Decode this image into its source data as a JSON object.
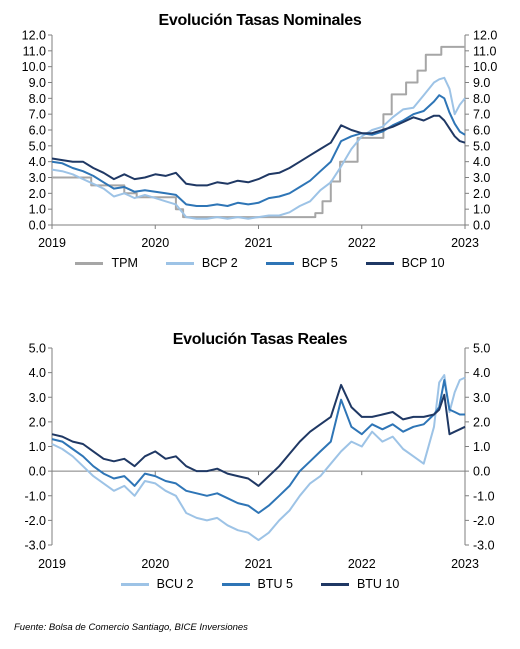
{
  "chart_data": [
    {
      "type": "line",
      "title": "Evolución Tasas Nominales",
      "ylim": [
        0,
        12
      ],
      "y_ticks": [
        "0.0",
        "1.0",
        "2.0",
        "3.0",
        "4.0",
        "5.0",
        "6.0",
        "7.0",
        "8.0",
        "9.0",
        "10.0",
        "11.0",
        "12.0"
      ],
      "x_ticks": [
        "2019",
        "2020",
        "2021",
        "2022",
        "2023"
      ],
      "xlim": [
        2019.0,
        2023.0
      ],
      "grid": false,
      "legend_position": "bottom",
      "series": [
        {
          "name": "TPM",
          "color": "#a6a6a6",
          "step": true,
          "x": [
            2019.0,
            2019.38,
            2019.7,
            2019.82,
            2020.2,
            2020.27,
            2021.55,
            2021.62,
            2021.7,
            2021.79,
            2021.88,
            2021.96,
            2022.05,
            2022.21,
            2022.29,
            2022.43,
            2022.54,
            2022.62,
            2022.7,
            2022.77,
            2023.0
          ],
          "values": [
            3.0,
            2.5,
            2.0,
            1.75,
            1.0,
            0.5,
            0.75,
            1.5,
            2.75,
            4.0,
            4.0,
            5.5,
            5.5,
            7.0,
            8.25,
            9.0,
            9.75,
            10.75,
            10.75,
            11.25,
            11.25
          ]
        },
        {
          "name": "BCP 2",
          "color": "#9dc3e6",
          "x": [
            2019.0,
            2019.1,
            2019.2,
            2019.3,
            2019.4,
            2019.5,
            2019.6,
            2019.7,
            2019.8,
            2019.9,
            2020.0,
            2020.1,
            2020.2,
            2020.3,
            2020.4,
            2020.5,
            2020.6,
            2020.7,
            2020.8,
            2020.9,
            2021.0,
            2021.1,
            2021.2,
            2021.3,
            2021.4,
            2021.5,
            2021.6,
            2021.7,
            2021.8,
            2021.9,
            2022.0,
            2022.1,
            2022.2,
            2022.3,
            2022.4,
            2022.5,
            2022.6,
            2022.7,
            2022.75,
            2022.8,
            2022.85,
            2022.9,
            2022.95,
            2023.0
          ],
          "values": [
            3.5,
            3.4,
            3.2,
            2.9,
            2.6,
            2.3,
            1.8,
            2.0,
            1.7,
            1.9,
            1.7,
            1.5,
            1.3,
            0.5,
            0.4,
            0.4,
            0.5,
            0.4,
            0.5,
            0.4,
            0.5,
            0.6,
            0.6,
            0.8,
            1.2,
            1.5,
            2.2,
            2.7,
            3.7,
            4.8,
            5.6,
            6.0,
            6.2,
            6.8,
            7.3,
            7.4,
            8.2,
            9.0,
            9.2,
            9.3,
            8.6,
            7.0,
            7.6,
            8.0
          ]
        },
        {
          "name": "BCP 5",
          "color": "#2e75b6",
          "x": [
            2019.0,
            2019.1,
            2019.2,
            2019.3,
            2019.4,
            2019.5,
            2019.6,
            2019.7,
            2019.8,
            2019.9,
            2020.0,
            2020.1,
            2020.2,
            2020.3,
            2020.4,
            2020.5,
            2020.6,
            2020.7,
            2020.8,
            2020.9,
            2021.0,
            2021.1,
            2021.2,
            2021.3,
            2021.4,
            2021.5,
            2021.6,
            2021.7,
            2021.8,
            2021.9,
            2022.0,
            2022.1,
            2022.2,
            2022.3,
            2022.4,
            2022.5,
            2022.6,
            2022.7,
            2022.75,
            2022.8,
            2022.85,
            2022.9,
            2022.95,
            2023.0
          ],
          "values": [
            4.0,
            3.9,
            3.6,
            3.4,
            3.1,
            2.7,
            2.3,
            2.4,
            2.1,
            2.2,
            2.1,
            2.0,
            1.9,
            1.3,
            1.2,
            1.2,
            1.3,
            1.2,
            1.4,
            1.3,
            1.4,
            1.7,
            1.8,
            2.0,
            2.4,
            2.8,
            3.4,
            4.0,
            5.3,
            5.6,
            5.8,
            5.7,
            5.9,
            6.3,
            6.6,
            7.0,
            7.2,
            7.8,
            8.2,
            8.0,
            7.1,
            6.4,
            5.9,
            5.7
          ]
        },
        {
          "name": "BCP 10",
          "color": "#1f3864",
          "x": [
            2019.0,
            2019.1,
            2019.2,
            2019.3,
            2019.4,
            2019.5,
            2019.6,
            2019.7,
            2019.8,
            2019.9,
            2020.0,
            2020.1,
            2020.2,
            2020.3,
            2020.4,
            2020.5,
            2020.6,
            2020.7,
            2020.8,
            2020.9,
            2021.0,
            2021.1,
            2021.2,
            2021.3,
            2021.4,
            2021.5,
            2021.6,
            2021.7,
            2021.8,
            2021.9,
            2022.0,
            2022.1,
            2022.2,
            2022.3,
            2022.4,
            2022.5,
            2022.6,
            2022.7,
            2022.75,
            2022.8,
            2022.85,
            2022.9,
            2022.95,
            2023.0
          ],
          "values": [
            4.2,
            4.1,
            4.0,
            4.0,
            3.6,
            3.3,
            2.9,
            3.2,
            2.9,
            3.0,
            3.2,
            3.1,
            3.3,
            2.6,
            2.5,
            2.5,
            2.7,
            2.6,
            2.8,
            2.7,
            2.9,
            3.2,
            3.3,
            3.6,
            4.0,
            4.4,
            4.8,
            5.2,
            6.3,
            6.0,
            5.8,
            5.8,
            6.0,
            6.2,
            6.5,
            6.8,
            6.6,
            6.9,
            6.9,
            6.6,
            6.1,
            5.6,
            5.3,
            5.2
          ]
        }
      ]
    },
    {
      "type": "line",
      "title": "Evolución Tasas Reales",
      "ylim": [
        -3,
        5
      ],
      "y_ticks": [
        "-3.0",
        "-2.0",
        "-1.0",
        "0.0",
        "1.0",
        "2.0",
        "3.0",
        "4.0",
        "5.0"
      ],
      "x_ticks": [
        "2019",
        "2020",
        "2021",
        "2022",
        "2023"
      ],
      "xlim": [
        2019.0,
        2023.0
      ],
      "grid": false,
      "legend_position": "bottom",
      "series": [
        {
          "name": "BCU 2",
          "color": "#9dc3e6",
          "x": [
            2019.0,
            2019.1,
            2019.2,
            2019.3,
            2019.4,
            2019.5,
            2019.6,
            2019.7,
            2019.8,
            2019.9,
            2020.0,
            2020.1,
            2020.2,
            2020.3,
            2020.4,
            2020.5,
            2020.6,
            2020.7,
            2020.8,
            2020.9,
            2021.0,
            2021.1,
            2021.2,
            2021.3,
            2021.4,
            2021.5,
            2021.6,
            2021.7,
            2021.8,
            2021.9,
            2022.0,
            2022.1,
            2022.2,
            2022.3,
            2022.4,
            2022.5,
            2022.6,
            2022.7,
            2022.75,
            2022.8,
            2022.85,
            2022.9,
            2022.95,
            2023.0
          ],
          "values": [
            1.1,
            0.9,
            0.6,
            0.2,
            -0.2,
            -0.5,
            -0.8,
            -0.6,
            -1.0,
            -0.4,
            -0.5,
            -0.8,
            -1.0,
            -1.7,
            -1.9,
            -2.0,
            -1.9,
            -2.2,
            -2.4,
            -2.5,
            -2.8,
            -2.5,
            -2.0,
            -1.6,
            -1.0,
            -0.5,
            -0.2,
            0.3,
            0.8,
            1.2,
            1.0,
            1.6,
            1.2,
            1.4,
            0.9,
            0.6,
            0.3,
            1.8,
            3.6,
            3.9,
            2.4,
            3.2,
            3.7,
            3.8
          ]
        },
        {
          "name": "BTU 5",
          "color": "#2e75b6",
          "x": [
            2019.0,
            2019.1,
            2019.2,
            2019.3,
            2019.4,
            2019.5,
            2019.6,
            2019.7,
            2019.8,
            2019.9,
            2020.0,
            2020.1,
            2020.2,
            2020.3,
            2020.4,
            2020.5,
            2020.6,
            2020.7,
            2020.8,
            2020.9,
            2021.0,
            2021.1,
            2021.2,
            2021.3,
            2021.4,
            2021.5,
            2021.6,
            2021.7,
            2021.8,
            2021.9,
            2022.0,
            2022.1,
            2022.2,
            2022.3,
            2022.4,
            2022.5,
            2022.6,
            2022.7,
            2022.75,
            2022.8,
            2022.85,
            2022.9,
            2022.95,
            2023.0
          ],
          "values": [
            1.3,
            1.2,
            0.9,
            0.6,
            0.2,
            -0.1,
            -0.3,
            -0.2,
            -0.6,
            -0.1,
            -0.2,
            -0.4,
            -0.5,
            -0.8,
            -0.9,
            -1.0,
            -0.9,
            -1.1,
            -1.3,
            -1.4,
            -1.7,
            -1.4,
            -1.0,
            -0.6,
            0.0,
            0.4,
            0.8,
            1.2,
            2.9,
            1.8,
            1.5,
            1.9,
            1.7,
            1.9,
            1.6,
            1.8,
            1.9,
            2.3,
            2.6,
            3.7,
            2.5,
            2.4,
            2.3,
            2.3
          ]
        },
        {
          "name": "BTU 10",
          "color": "#1f3864",
          "x": [
            2019.0,
            2019.1,
            2019.2,
            2019.3,
            2019.4,
            2019.5,
            2019.6,
            2019.7,
            2019.8,
            2019.9,
            2020.0,
            2020.1,
            2020.2,
            2020.3,
            2020.4,
            2020.5,
            2020.6,
            2020.7,
            2020.8,
            2020.9,
            2021.0,
            2021.1,
            2021.2,
            2021.3,
            2021.4,
            2021.5,
            2021.6,
            2021.7,
            2021.8,
            2021.9,
            2022.0,
            2022.1,
            2022.2,
            2022.3,
            2022.4,
            2022.5,
            2022.6,
            2022.7,
            2022.75,
            2022.8,
            2022.85,
            2022.9,
            2022.95,
            2023.0
          ],
          "values": [
            1.5,
            1.4,
            1.2,
            1.1,
            0.8,
            0.5,
            0.4,
            0.5,
            0.2,
            0.6,
            0.8,
            0.5,
            0.6,
            0.2,
            0.0,
            0.0,
            0.1,
            -0.1,
            -0.2,
            -0.3,
            -0.6,
            -0.2,
            0.2,
            0.7,
            1.2,
            1.6,
            1.9,
            2.2,
            3.5,
            2.6,
            2.2,
            2.2,
            2.3,
            2.4,
            2.1,
            2.2,
            2.2,
            2.3,
            2.5,
            3.1,
            1.5,
            1.6,
            1.7,
            1.8
          ]
        }
      ]
    }
  ],
  "source": "Fuente: Bolsa de Comercio Santiago, BICE Inversiones"
}
